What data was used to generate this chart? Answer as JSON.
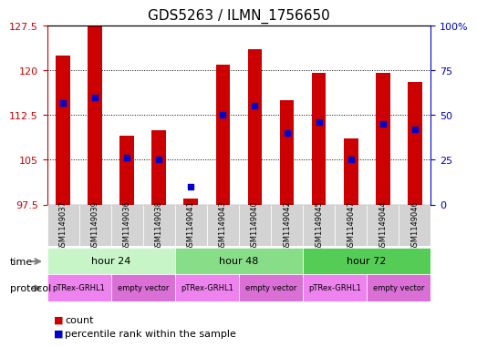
{
  "title": "GDS5263 / ILMN_1756650",
  "samples": [
    "GSM1149037",
    "GSM1149039",
    "GSM1149036",
    "GSM1149038",
    "GSM1149041",
    "GSM1149043",
    "GSM1149040",
    "GSM1149042",
    "GSM1149045",
    "GSM1149047",
    "GSM1149044",
    "GSM1149046"
  ],
  "count_values": [
    122.5,
    127.5,
    109.0,
    110.0,
    98.5,
    121.0,
    123.5,
    115.0,
    119.5,
    108.5,
    119.5,
    118.0
  ],
  "percentile_values": [
    57,
    60,
    26,
    25,
    10,
    50,
    55,
    40,
    46,
    25,
    45,
    42
  ],
  "y_min": 97.5,
  "y_max": 127.5,
  "y_ticks": [
    97.5,
    105,
    112.5,
    120,
    127.5
  ],
  "right_y_ticks": [
    0,
    25,
    50,
    75,
    100
  ],
  "right_y_labels": [
    "0",
    "25",
    "50",
    "75",
    "100%"
  ],
  "time_groups": [
    {
      "label": "hour 24",
      "start": 0,
      "end": 3
    },
    {
      "label": "hour 48",
      "start": 4,
      "end": 7
    },
    {
      "label": "hour 72",
      "start": 8,
      "end": 11
    }
  ],
  "time_colors": [
    "#C8F5C8",
    "#88DD88",
    "#55CC55"
  ],
  "protocol_groups": [
    {
      "label": "pTRex-GRHL1",
      "start": 0,
      "end": 1
    },
    {
      "label": "empty vector",
      "start": 2,
      "end": 3
    },
    {
      "label": "pTRex-GRHL1",
      "start": 4,
      "end": 5
    },
    {
      "label": "empty vector",
      "start": 6,
      "end": 7
    },
    {
      "label": "pTRex-GRHL1",
      "start": 8,
      "end": 9
    },
    {
      "label": "empty vector",
      "start": 10,
      "end": 11
    }
  ],
  "proto_colors": {
    "pTRex-GRHL1": "#EE82EE",
    "empty vector": "#DA70D6"
  },
  "bar_color": "#CC0000",
  "dot_color": "#0000CC",
  "sample_bg_color": "#D3D3D3",
  "left_axis_color": "#CC0000",
  "right_axis_color": "#0000CC"
}
